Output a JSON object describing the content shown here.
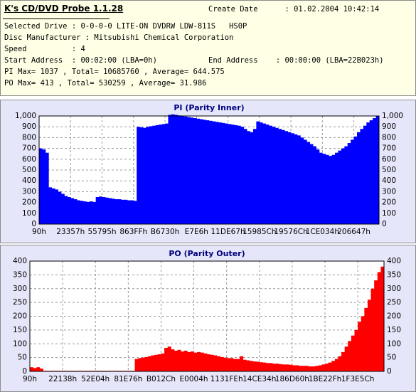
{
  "header": {
    "title": "K's CD/DVD Probe 1.1.28",
    "create_date": "Create Date      : 01.02.2004 10:42:14",
    "lines": [
      "Selected Drive : 0-0-0-0 LITE-ON DVDRW LDW-811S   HS0P",
      "Disc Manufacturer : Mitsubishi Chemical Corporation",
      "Speed          : 4",
      "Start Address  : 00:02:00 (LBA=0h)",
      "PI Max= 1037 , Total= 10685760 , Average= 644.575",
      "PO Max= 413 , Total= 530259 , Average= 31.986"
    ],
    "end_address": "End Address    : 00:00:00 (LBA=22B023h)"
  },
  "chart_data": [
    {
      "type": "bar",
      "title": "PI (Parity Inner)",
      "color": "#0000ff",
      "grid": true,
      "xlim": [
        0,
        108
      ],
      "xticks": [
        {
          "value": 0,
          "label": "90h"
        },
        {
          "value": 10,
          "label": "23357h"
        },
        {
          "value": 20,
          "label": "55795h"
        },
        {
          "value": 30,
          "label": "863FFh"
        },
        {
          "value": 40,
          "label": "B6730h"
        },
        {
          "value": 50,
          "label": "E7E6h"
        },
        {
          "value": 60,
          "label": "11DE67h"
        },
        {
          "value": 70,
          "label": "15985Ch"
        },
        {
          "value": 80,
          "label": "19576Ch"
        },
        {
          "value": 90,
          "label": "1CE034h"
        },
        {
          "value": 100,
          "label": "206647h"
        }
      ],
      "ylim": [
        0,
        1000
      ],
      "yticks": [
        0,
        100,
        200,
        300,
        400,
        500,
        600,
        700,
        800,
        900,
        {
          "value": 1000,
          "label": "1,000"
        }
      ],
      "values": [
        700,
        690,
        660,
        340,
        330,
        320,
        300,
        280,
        260,
        250,
        240,
        230,
        220,
        215,
        210,
        205,
        210,
        205,
        250,
        255,
        250,
        245,
        240,
        235,
        230,
        230,
        225,
        225,
        220,
        220,
        215,
        900,
        895,
        890,
        900,
        905,
        910,
        915,
        920,
        925,
        930,
        1010,
        1015,
        1010,
        1005,
        1000,
        995,
        990,
        985,
        980,
        975,
        970,
        965,
        960,
        955,
        950,
        945,
        940,
        935,
        930,
        925,
        920,
        915,
        910,
        900,
        880,
        860,
        850,
        880,
        950,
        940,
        930,
        920,
        910,
        900,
        890,
        880,
        870,
        860,
        850,
        840,
        830,
        820,
        800,
        780,
        760,
        740,
        720,
        690,
        660,
        650,
        640,
        630,
        640,
        660,
        680,
        700,
        720,
        750,
        780,
        810,
        850,
        880,
        910,
        940,
        960,
        980,
        1000
      ]
    },
    {
      "type": "bar",
      "title": "PO (Parity Outer)",
      "color": "#ff0000",
      "grid": true,
      "xlim": [
        0,
        108
      ],
      "xticks": [
        {
          "value": 0,
          "label": "90h"
        },
        {
          "value": 10,
          "label": "22138h"
        },
        {
          "value": 20,
          "label": "52E04h"
        },
        {
          "value": 30,
          "label": "81E76h"
        },
        {
          "value": 40,
          "label": "B012Ch"
        },
        {
          "value": 50,
          "label": "E0004h"
        },
        {
          "value": 60,
          "label": "1131FEh"
        },
        {
          "value": 70,
          "label": "14CE34h"
        },
        {
          "value": 80,
          "label": "186D60h"
        },
        {
          "value": 90,
          "label": "1BE22Fh"
        },
        {
          "value": 100,
          "label": "1F3E5Ch"
        }
      ],
      "ylim": [
        0,
        400
      ],
      "yticks": [
        0,
        50,
        100,
        150,
        200,
        250,
        300,
        350,
        400
      ],
      "values": [
        15,
        12,
        15,
        10,
        2,
        2,
        2,
        2,
        2,
        2,
        2,
        2,
        2,
        2,
        2,
        2,
        2,
        2,
        2,
        2,
        2,
        2,
        2,
        2,
        2,
        2,
        2,
        2,
        2,
        2,
        2,
        2,
        45,
        48,
        50,
        52,
        55,
        58,
        60,
        62,
        65,
        85,
        90,
        80,
        75,
        78,
        72,
        75,
        70,
        72,
        68,
        70,
        68,
        65,
        62,
        60,
        58,
        55,
        52,
        50,
        48,
        48,
        45,
        45,
        55,
        42,
        40,
        38,
        36,
        35,
        33,
        32,
        30,
        30,
        28,
        28,
        26,
        25,
        25,
        24,
        22,
        22,
        20,
        20,
        20,
        18,
        18,
        20,
        22,
        25,
        28,
        32,
        38,
        45,
        55,
        70,
        90,
        110,
        130,
        150,
        180,
        200,
        230,
        260,
        300,
        330,
        360,
        380
      ]
    }
  ]
}
